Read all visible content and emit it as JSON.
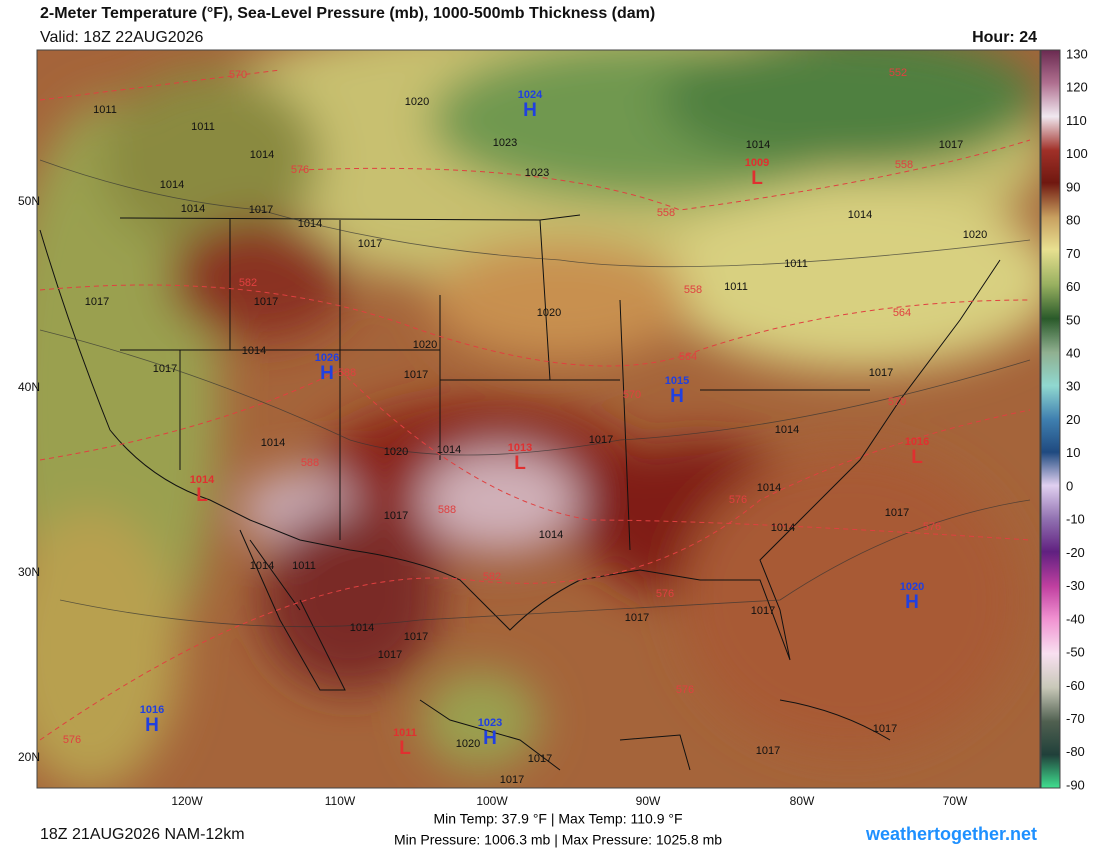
{
  "header": {
    "title": "2-Meter Temperature (°F), Sea-Level Pressure (mb), 1000-500mb Thickness (dam)",
    "valid": "Valid: 18Z 22AUG2026",
    "hour": "Hour: 24"
  },
  "colorbar": {
    "ticks": [
      130,
      120,
      110,
      100,
      90,
      80,
      70,
      60,
      50,
      40,
      30,
      20,
      10,
      0,
      -10,
      -20,
      -30,
      -40,
      -50,
      -60,
      -70,
      -80,
      -90
    ]
  },
  "axes": {
    "lon": [
      "120W",
      "110W",
      "100W",
      "90W",
      "80W",
      "70W"
    ],
    "lat": [
      "50N",
      "40N",
      "30N",
      "20N"
    ]
  },
  "centers": [
    {
      "type": "H",
      "value": "1024"
    },
    {
      "type": "H",
      "value": "1026"
    },
    {
      "type": "H",
      "value": "1015"
    },
    {
      "type": "H",
      "value": "1020"
    },
    {
      "type": "H",
      "value": "1016"
    },
    {
      "type": "H",
      "value": "1023"
    },
    {
      "type": "L",
      "value": "1009"
    },
    {
      "type": "L",
      "value": "1013"
    },
    {
      "type": "L",
      "value": "1016"
    },
    {
      "type": "L",
      "value": "1014"
    },
    {
      "type": "L",
      "value": "1011"
    }
  ],
  "isobar_labels": [
    "1011",
    "1011",
    "1014",
    "1014",
    "1014",
    "1017",
    "1014",
    "1017",
    "1017",
    "1017",
    "1014",
    "1017",
    "1020",
    "1020",
    "1017",
    "1014",
    "1020",
    "1014",
    "1017",
    "1014",
    "1014",
    "1014",
    "1017",
    "1014",
    "1017",
    "1011",
    "1014",
    "1014",
    "1017",
    "1017",
    "1017",
    "1017",
    "1017",
    "1017",
    "1017",
    "1017",
    "1020",
    "1014",
    "1011",
    "1011",
    "1017",
    "1020",
    "1020",
    "1023",
    "1023",
    "1017",
    "1014"
  ],
  "thickness_labels": [
    "570",
    "576",
    "552",
    "558",
    "558",
    "558",
    "564",
    "564",
    "582",
    "588",
    "570",
    "570",
    "588",
    "588",
    "582",
    "576",
    "576",
    "576",
    "576",
    "576"
  ],
  "footer": {
    "run": "18Z 21AUG2026 NAM-12km",
    "temps": "Min Temp: 37.9 °F | Max Temp: 110.9 °F",
    "pressures": "Min Pressure: 1006.3 mb | Max Pressure: 1025.8 mb",
    "site": "weathertogether.net"
  }
}
